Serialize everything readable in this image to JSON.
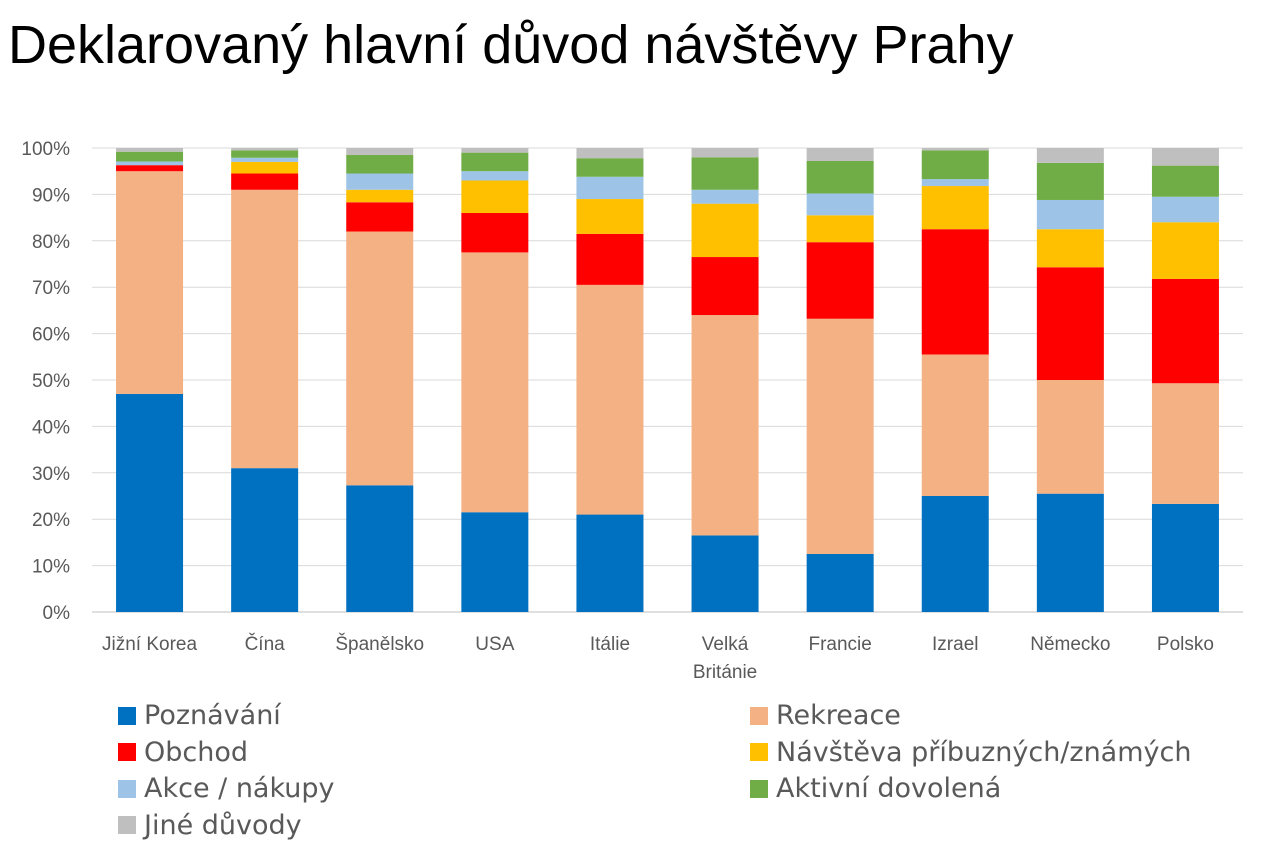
{
  "title": "Deklarovaný hlavní důvod návštěvy Prahy",
  "chart_data": {
    "type": "bar",
    "stacked": true,
    "percent": true,
    "categories": [
      "Jižní Korea",
      "Čína",
      "Španělsko",
      "USA",
      "Itálie",
      "Velká Británie",
      "Francie",
      "Izrael",
      "Německo",
      "Polsko"
    ],
    "ylim": [
      0,
      100
    ],
    "yticks": [
      "0%",
      "10%",
      "20%",
      "30%",
      "40%",
      "50%",
      "60%",
      "70%",
      "80%",
      "90%",
      "100%"
    ],
    "grid": true,
    "legend_position": "bottom",
    "series": [
      {
        "name": "Poznávání",
        "color": "#0070C0",
        "values": [
          47.0,
          31.0,
          27.3,
          21.5,
          21.0,
          16.5,
          12.5,
          25.0,
          25.5,
          23.3
        ]
      },
      {
        "name": "Rekreace",
        "color": "#F4B183",
        "values": [
          48.0,
          60.0,
          54.7,
          56.0,
          49.5,
          47.5,
          50.7,
          30.5,
          24.5,
          26.0
        ]
      },
      {
        "name": "Obchod",
        "color": "#FF0000",
        "values": [
          1.3,
          3.5,
          6.3,
          8.5,
          11.0,
          12.5,
          16.5,
          27.0,
          24.3,
          22.5
        ]
      },
      {
        "name": "Návštěva příbuzných/známých",
        "color": "#FFC000",
        "values": [
          0.0,
          2.5,
          2.7,
          7.0,
          7.5,
          11.5,
          5.8,
          9.3,
          8.2,
          12.2
        ]
      },
      {
        "name": "Akce / nákupy",
        "color": "#9DC3E6",
        "values": [
          0.8,
          0.9,
          3.5,
          2.0,
          4.8,
          3.0,
          4.7,
          1.5,
          6.3,
          5.5
        ]
      },
      {
        "name": "Aktivní dovolená",
        "color": "#70AD47",
        "values": [
          2.1,
          1.6,
          4.0,
          4.0,
          4.0,
          7.0,
          7.0,
          6.2,
          8.0,
          6.7
        ]
      },
      {
        "name": "Jiné důvody",
        "color": "#BFBFBF",
        "values": [
          0.8,
          0.5,
          1.5,
          1.0,
          2.2,
          2.0,
          2.8,
          0.5,
          3.2,
          3.8
        ]
      }
    ]
  }
}
